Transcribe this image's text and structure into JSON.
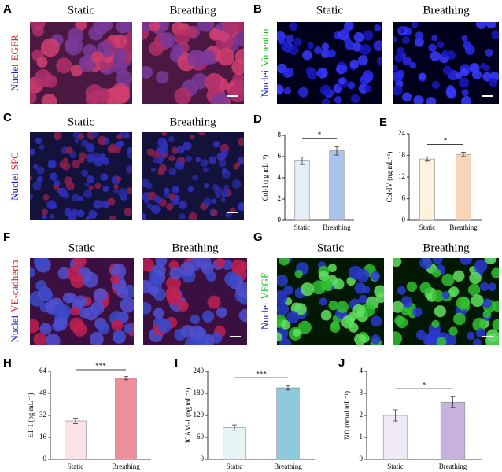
{
  "image_panels": [
    {
      "letter": "A",
      "label_parts": [
        "Nuclei",
        "EGFR"
      ],
      "columns": [
        "Static",
        "Breathing"
      ]
    },
    {
      "letter": "B",
      "label_parts": [
        "Nuclei",
        "Vimentin"
      ],
      "columns": [
        "Static",
        "Breathing"
      ]
    },
    {
      "letter": "C",
      "label_parts": [
        "Nuclei",
        "SPC"
      ],
      "columns": [
        "Static",
        "Breathing"
      ]
    },
    {
      "letter": "F",
      "label_parts": [
        "Nuclei",
        "VE-cadherin"
      ],
      "columns": [
        "Static",
        "Breathing"
      ]
    },
    {
      "letter": "G",
      "label_parts": [
        "Nuclei",
        "VEGF"
      ],
      "columns": [
        "Static",
        "Breathing"
      ]
    }
  ],
  "chart_data": [
    {
      "type": "bar",
      "letter": "D",
      "ylabel": "Col-I (ng mL⁻¹)",
      "categories": [
        "Static",
        "Breathing"
      ],
      "values": [
        5.6,
        6.55
      ],
      "errors": [
        0.35,
        0.4
      ],
      "colors": [
        "#e4edf8",
        "#a9c4ea"
      ],
      "ylim": [
        0,
        8
      ],
      "yticks": [
        0,
        2,
        4,
        6,
        8
      ],
      "significance": "*"
    },
    {
      "type": "bar",
      "letter": "E",
      "ylabel": "Col-IV (ng mL⁻¹)",
      "categories": [
        "Static",
        "Breathing"
      ],
      "values": [
        17,
        18.3
      ],
      "errors": [
        0.6,
        0.6
      ],
      "colors": [
        "#fdf2de",
        "#f8d5b8"
      ],
      "ylim": [
        0,
        24
      ],
      "yticks": [
        0,
        6,
        12,
        18,
        24
      ],
      "significance": "*"
    },
    {
      "type": "bar",
      "letter": "H",
      "ylabel": "ET-1 (pg mL⁻¹)",
      "categories": [
        "Static",
        "Breathing"
      ],
      "values": [
        28,
        59
      ],
      "errors": [
        2,
        1.2
      ],
      "colors": [
        "#f9e3e7",
        "#ec8f9a"
      ],
      "ylim": [
        0,
        64
      ],
      "yticks": [
        0,
        16,
        32,
        48,
        64
      ],
      "significance": "***"
    },
    {
      "type": "bar",
      "letter": "I",
      "ylabel": "ICAM-1 (ng mL⁻¹)",
      "categories": [
        "Static",
        "Breathing"
      ],
      "values": [
        87,
        195
      ],
      "errors": [
        7,
        6
      ],
      "colors": [
        "#e6f4f5",
        "#8ec9dc"
      ],
      "ylim": [
        0,
        240
      ],
      "yticks": [
        0,
        60,
        120,
        180,
        240
      ],
      "significance": "***"
    },
    {
      "type": "bar",
      "letter": "J",
      "ylabel": "NO (nmol mL⁻¹)",
      "categories": [
        "Static",
        "Breathing"
      ],
      "values": [
        2.0,
        2.6
      ],
      "errors": [
        0.25,
        0.25
      ],
      "colors": [
        "#efe8f5",
        "#c6b2dc"
      ],
      "ylim": [
        0,
        4
      ],
      "yticks": [
        0,
        1,
        2,
        3,
        4
      ],
      "significance": "*"
    }
  ]
}
